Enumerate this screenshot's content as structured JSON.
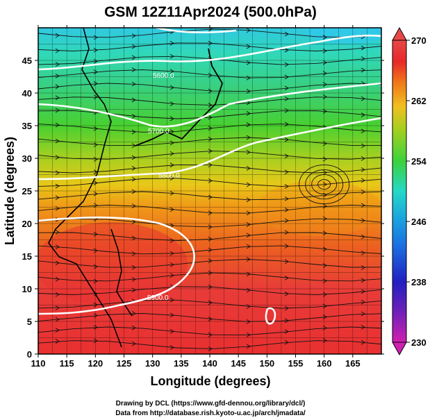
{
  "title": "GSM 12Z11Apr2024 (500.0hPa)",
  "x_axis": {
    "label": "Longitude (degrees)",
    "range": [
      110,
      170
    ],
    "ticks": [
      110,
      115,
      120,
      125,
      130,
      135,
      140,
      145,
      150,
      155,
      160,
      165
    ]
  },
  "y_axis": {
    "label": "Latitude  (degrees)",
    "range": [
      0,
      50
    ],
    "ticks": [
      0,
      5,
      10,
      15,
      20,
      25,
      30,
      35,
      40,
      45
    ]
  },
  "colorbar": {
    "range": [
      230,
      270
    ],
    "ticks": [
      230,
      238,
      246,
      254,
      262,
      270
    ],
    "colormap": [
      "#d020b0",
      "#2020c0",
      "#1a9ee0",
      "#25d8c8",
      "#3cd23c",
      "#a0d020",
      "#f0c020",
      "#f07818",
      "#e82828",
      "#e84040"
    ]
  },
  "contours": {
    "labels": [
      "5600.0",
      "5700.0",
      "5800.0",
      "5900.0"
    ],
    "color": "#ffffff"
  },
  "credits": {
    "line1": "Drawing by DCL (https://www.gfd-dennou.org/library/dcl/)",
    "line2": "Data from http://database.rish.kyoto-u.ac.jp/arch/jmadata/"
  }
}
